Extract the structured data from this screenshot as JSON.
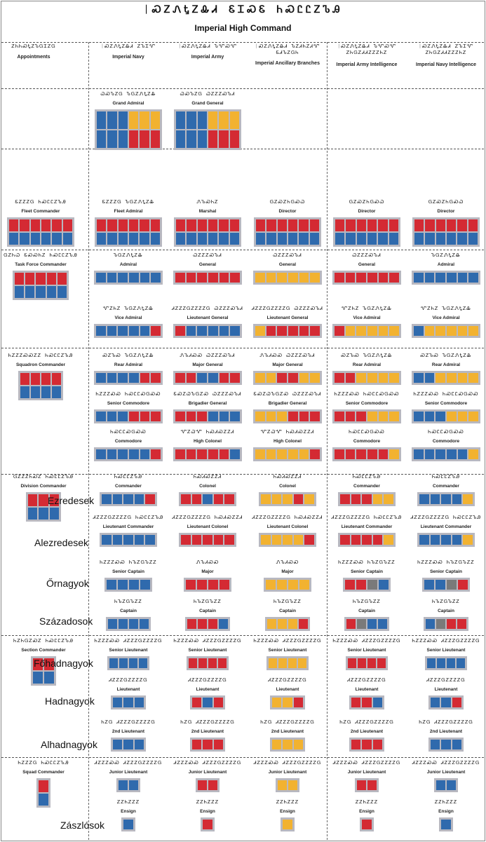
{
  "page": {
    "title_aurebesh": "ᛁᏍᏃᏁᎿᏃᎲᏗ ᏋᏆᏍᏋ ᏂᏍᏝᏝᏃᏖᎯ",
    "title": "Imperial High Command"
  },
  "colors": {
    "red": "#d42a33",
    "blue": "#2f6aad",
    "yellow": "#f2b230",
    "grey": "#7a7a7a",
    "plaque": "#b8b8c0"
  },
  "columns": [
    {
      "aur": "ᏃᏂᏂᏍᎿᏃᏖᏀᏆᏃᏀ",
      "label": "Appointments"
    },
    {
      "aur": "ᛁᏍᏃᏁᎿᏃᎲᏗ ᏃᏖᏆᏉ",
      "label": "Imperial Navy"
    },
    {
      "aur": "ᛁᏍᏃᏁᎿᏃᎲᏗ ᏖᏉᏍᏉ",
      "label": "Imperial Army"
    },
    {
      "aur": "ᛁᏍᏃᏁᎿᏃᎲᏗ ᏖᏃᏗᏂᏃᏗᏉ ᏋᏗᏖᏃᏀᏂ",
      "label": "Imperial Ancillary Branches"
    },
    {
      "aur": "ᛁᏍᏃᏁᎿᏃᎲᏗ ᏖᏉᏍᏉ ᏃᏂᏀᏃᏗᏗᏃᏃᏃᏂᏃ",
      "label": "Imperial Army Intelligence"
    },
    {
      "aur": "ᛁᏍᏃᏁᎿᏃᎲᏗ ᏃᏖᏆᏉ ᏃᏂᏀᏃᏗᏗᏃᏃᏃᏂᏃ",
      "label": "Imperial Navy Intelligence"
    }
  ],
  "ranks": [
    {
      "aur": "ᏇᏍᏖᏃᏀ ᏖᏀᏃᏁᎿᏃᎲ",
      "label": "Grand Admiral"
    },
    {
      "aur": "ᏇᏍᏖᏃᏀ ᏇᏃᏃᏃᏍᏖᏗ",
      "label": "Grand General"
    },
    {
      "aur": "ᏋᏃᏃᏃᏀ ᏂᏍᏝᏝᏃᏖᎯ",
      "label": "Fleet Commander"
    },
    {
      "aur": "ᏋᏃᏃᏃᏀ ᏖᏀᏃᏁᎿᏃᎲ",
      "label": "Fleet Admiral"
    },
    {
      "aur": "ᏁᏖᏍᏂᏃ",
      "label": "Marshal"
    },
    {
      "aur": "ᏀᏃᏍᏃᏂᏀᏍᏇ",
      "label": "Director"
    },
    {
      "aur": "ᏀᏃᏂᏇ ᏋᏍᏍᏂᏃ ᏂᏍᏝᏝᏃᏖᎯ",
      "label": "Task Force Commander"
    },
    {
      "aur": "ᏖᏀᏃᏁᎿᏃᎲ",
      "label": "Admiral"
    },
    {
      "aur": "ᏇᏃᏃᏃᏍᏖᏗ",
      "label": "General"
    },
    {
      "aur": "ᏉᏃᏂᏃ ᏖᏀᏃᏁᎿᏃᎲ",
      "label": "Vice Admiral"
    },
    {
      "aur": "ᏗᏃᏃᏃᏀᏃᏃᏃᏃᏀ ᏇᏃᏃᏃᏍᏖᏗ",
      "label": "Lieutenant General"
    },
    {
      "aur": "ᏂᏃᏃᏃᏍᏍᏃᏃ ᏂᏍᏝᏝᏃᏖᎯ",
      "label": "Squadron Commander"
    },
    {
      "aur": "ᏍᏃᏖᏍ ᏖᏀᏃᏁᎿᏃᎲ",
      "label": "Rear Admiral"
    },
    {
      "aur": "ᏁᏖᏗᏍᏍ ᏇᏃᏃᏃᏍᏖᏗ",
      "label": "Major General"
    },
    {
      "aur": "ᏂᏃᏃᏃᏍᏍ ᏂᏍᏝᏝᏍᏀᏍᏍ",
      "label": "Senior Commodore"
    },
    {
      "aur": "ᏋᏍᏃᏇᏖᏀᏃᏍ ᏇᏃᏃᏃᏍᏖᏗ",
      "label": "Brigadier General"
    },
    {
      "aur": "ᏂᏍᏝᏝᏍᏀᏍᏍ",
      "label": "Commodore"
    },
    {
      "aur": "ᏉᏃᏇᏉ ᏂᏍᏗᏍᏃᏃᏗ",
      "label": "High Colonel"
    },
    {
      "aur": "ᏂᏍᏝᏝᏃᏖᎯ",
      "label": "Commander"
    },
    {
      "aur": "ᏂᏍᏗᏍᏃᏃᏗ",
      "label": "Colonel"
    },
    {
      "aur": "ᏀᏃᏃᏃᏂᏍᏃ ᏂᏍᏝᏝᏃᏖᎯ",
      "label": "Division Commander"
    },
    {
      "aur": "ᏗᏃᏃᏃᏀᏃᏃᏃᏃᏀ ᏂᏍᏝᏝᏃᏖᎯ",
      "label": "Lieutenant Commander"
    },
    {
      "aur": "ᏗᏃᏃᏃᏀᏃᏃᏃᏃᏀ ᏂᏍᏗᏍᏃᏃᏗ",
      "label": "Lieutenant Colonel"
    },
    {
      "aur": "ᏂᏃᏃᏃᏍᏍ ᏂᏖᏃᏀᏖᏃᏃ",
      "label": "Senior Captain"
    },
    {
      "aur": "ᏁᏖᏗᏍᏍ",
      "label": "Major"
    },
    {
      "aur": "ᏂᏖᏃᏀᏖᏃᏃ",
      "label": "Captain"
    },
    {
      "aur": "ᏂᏃᏂᏀᏃᏍᏃ ᏂᏍᏝᏝᏃᏖᎯ",
      "label": "Section Commander"
    },
    {
      "aur": "ᏂᏃᏃᏃᏍᏍ ᏗᏃᏃᏃᏀᏃᏃᏃᏃᏀ",
      "label": "Senior Lieutenant"
    },
    {
      "aur": "ᏗᏃᏃᏃᏀᏃᏃᏃᏃᏀ",
      "label": "Lieutenant"
    },
    {
      "aur": "ᏂᏃᏀ ᏗᏃᏃᏃᏀᏃᏃᏃᏃᏀ",
      "label": "2nd Lieutenant"
    },
    {
      "aur": "ᏂᏃᏃᏃᏀ ᏂᏍᏝᏝᏃᏖᎯ",
      "label": "Squad Commander"
    },
    {
      "aur": "ᏗᏃᏃᏃᏍᏍ ᏗᏃᏃᏃᏀᏃᏃᏃᏃᏀ",
      "label": "Junior Lieutenant"
    },
    {
      "aur": "ᏃᏃᏂᏃᏃᏃ",
      "label": "Ensign"
    }
  ],
  "hungarian": {
    "ezredesek": "Ezredesek",
    "alezredesek": "Alezredesek",
    "ornagyok": "Őrnagyok",
    "szazadosok": "Századosok",
    "fohadnagyok": "Főhadnagyok",
    "hadnagyok": "Hadnagyok",
    "alhadnagyok": "Alhadnagyok",
    "zaszlosok": "Zászlósok"
  }
}
